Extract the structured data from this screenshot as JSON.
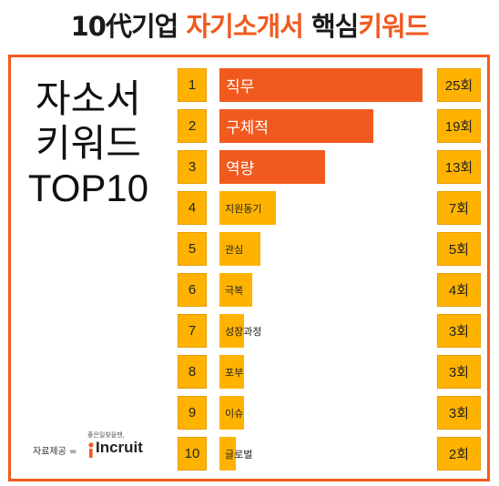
{
  "title": {
    "part1": "10代기업 ",
    "part2": "자기소개서",
    "part3": " 핵심",
    "part4": "키워드"
  },
  "side_title": {
    "line1": "자소서",
    "line2": "키워드",
    "line3": "TOP10"
  },
  "source": {
    "label": "자료제공 =",
    "logo_tagline": "좋은일찾을땐,",
    "logo_word": "Incruit"
  },
  "colors": {
    "accent": "#f15a1f",
    "bar": "#ffb300",
    "frame": "#f15a1f"
  },
  "chart_data": {
    "type": "bar",
    "orientation": "horizontal",
    "categories": [
      "직무",
      "구체적",
      "역량",
      "지원동기",
      "관심",
      "극복",
      "성장과정",
      "포부",
      "이슈",
      "글로벌"
    ],
    "ranks": [
      "1",
      "2",
      "3",
      "4",
      "5",
      "6",
      "7",
      "8",
      "9",
      "10"
    ],
    "values": [
      25,
      19,
      13,
      7,
      5,
      4,
      3,
      3,
      3,
      2
    ],
    "value_labels": [
      "25회",
      "19회",
      "13회",
      "7회",
      "5회",
      "4회",
      "3회",
      "3회",
      "3회",
      "2회"
    ],
    "highlight_top": 3,
    "title": "10代기업 자기소개서 핵심키워드"
  }
}
